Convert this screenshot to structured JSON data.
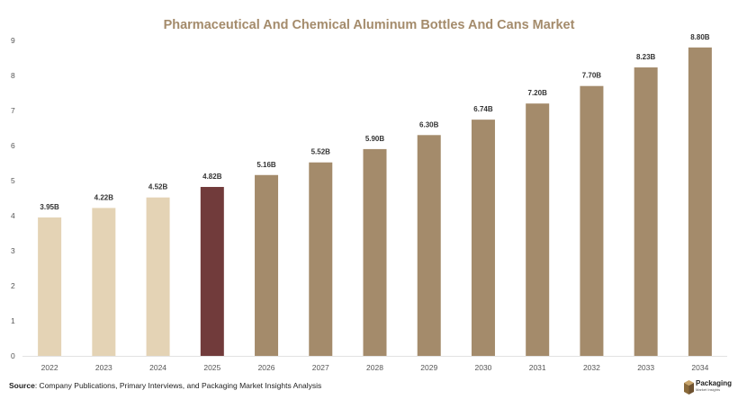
{
  "chart_data": {
    "type": "bar",
    "title": "Pharmaceutical And Chemical Aluminum Bottles And Cans Market",
    "xlabel": "",
    "ylabel": "",
    "ylim": [
      0,
      9
    ],
    "yticks": [
      0,
      1,
      2,
      3,
      4,
      5,
      6,
      7,
      8,
      9
    ],
    "grid": false,
    "categories": [
      "2022",
      "2023",
      "2024",
      "2025",
      "2026",
      "2027",
      "2028",
      "2029",
      "2030",
      "2031",
      "2032",
      "2033",
      "2034"
    ],
    "values": [
      3.95,
      4.22,
      4.52,
      4.82,
      5.16,
      5.52,
      5.9,
      6.3,
      6.74,
      7.2,
      7.7,
      8.23,
      8.8
    ],
    "data_labels": [
      "3.95B",
      "4.22B",
      "4.52B",
      "4.82B",
      "5.16B",
      "5.52B",
      "5.90B",
      "6.30B",
      "6.74B",
      "7.20B",
      "7.70B",
      "8.23B",
      "8.80B"
    ],
    "colors": {
      "historical": "#e4d3b5",
      "base_year": "#713b3b",
      "forecast": "#a48b6b",
      "title": "#a48b6b"
    },
    "bar_color_group": [
      "historical",
      "historical",
      "historical",
      "base_year",
      "forecast",
      "forecast",
      "forecast",
      "forecast",
      "forecast",
      "forecast",
      "forecast",
      "forecast",
      "forecast"
    ]
  },
  "source": {
    "label": "Source",
    "text": ": Company Publications, Primary Interviews, and Packaging Market Insights Analysis"
  },
  "logo": {
    "name": "Packaging",
    "tagline": "Market Insights",
    "icon": "box-icon"
  }
}
